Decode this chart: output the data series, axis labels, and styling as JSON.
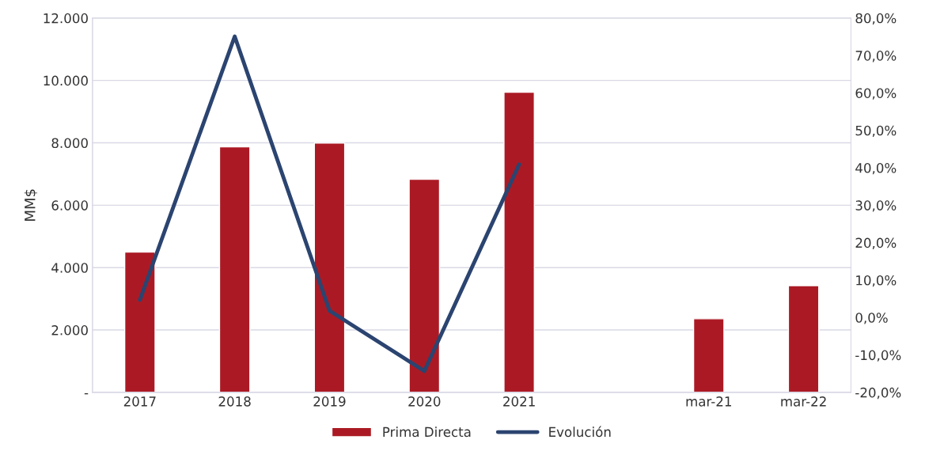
{
  "chart_data": {
    "type": "bar",
    "ylabel": "MM$",
    "categories": [
      "2017",
      "2018",
      "2019",
      "2020",
      "2021",
      null,
      "mar-21",
      "mar-22"
    ],
    "series": [
      {
        "name": "Prima Directa",
        "color": "#ab1a24",
        "values": [
          4500,
          7870,
          7990,
          6830,
          9620,
          null,
          2360,
          3420
        ]
      },
      {
        "name": "Evolución",
        "type": "line",
        "axis": "y2",
        "color": "#2b4470",
        "values": [
          4.7,
          75.1,
          1.8,
          -14.3,
          40.9,
          null,
          null,
          null
        ]
      }
    ],
    "ylim": [
      0,
      12000
    ],
    "yticks": [
      {
        "value": 0,
        "label": "-"
      },
      {
        "value": 2000,
        "label": "2.000"
      },
      {
        "value": 4000,
        "label": "4.000"
      },
      {
        "value": 6000,
        "label": "6.000"
      },
      {
        "value": 8000,
        "label": "8.000"
      },
      {
        "value": 10000,
        "label": "10.000"
      },
      {
        "value": 12000,
        "label": "12.000"
      }
    ],
    "y2lim": [
      -20,
      80
    ],
    "y2ticks": [
      {
        "value": -20,
        "label": "-20,0%"
      },
      {
        "value": -10,
        "label": "-10,0%"
      },
      {
        "value": 0,
        "label": "0,0%"
      },
      {
        "value": 10,
        "label": "10,0%"
      },
      {
        "value": 20,
        "label": "20,0%"
      },
      {
        "value": 30,
        "label": "30,0%"
      },
      {
        "value": 40,
        "label": "40,0%"
      },
      {
        "value": 50,
        "label": "50,0%"
      },
      {
        "value": 60,
        "label": "60,0%"
      },
      {
        "value": 70,
        "label": "70,0%"
      },
      {
        "value": 80,
        "label": "80,0%"
      }
    ],
    "grid": "y",
    "legend": "bottom",
    "marker": "none",
    "line_style": "solid"
  }
}
